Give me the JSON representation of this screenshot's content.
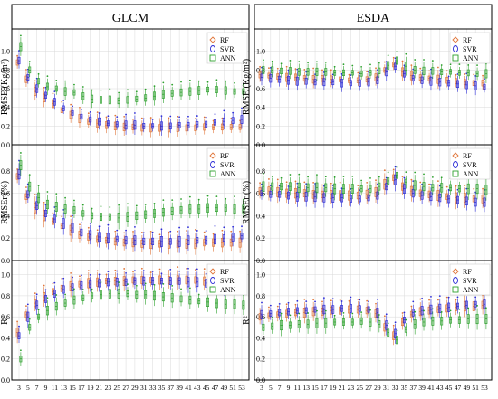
{
  "chart_data": [
    {
      "type": "boxplot",
      "title": "GLCM",
      "x": [
        3,
        5,
        7,
        9,
        11,
        13,
        15,
        17,
        19,
        21,
        23,
        25,
        27,
        29,
        31,
        33,
        35,
        37,
        39,
        41,
        43,
        45,
        47,
        49,
        51,
        53
      ],
      "x_tick_labels": [
        "3",
        "5",
        "7",
        "9",
        "11",
        "13",
        "15",
        "17",
        "19",
        "21",
        "23",
        "25",
        "27",
        "29",
        "31",
        "33",
        "35",
        "37",
        "39",
        "41",
        "43",
        "45",
        "47",
        "49",
        "51",
        "53"
      ],
      "legend": [
        "RF",
        "SVR",
        "ANN"
      ],
      "panels": [
        {
          "ylabel": "RMSE (Kg/m²)",
          "ylim": [
            0,
            1.2
          ],
          "yticks": [
            "0.0",
            "0.2",
            "0.4",
            "0.6",
            "0.8",
            "1.0"
          ],
          "series": [
            {
              "name": "RF",
              "median": [
                0.88,
                0.7,
                0.57,
                0.5,
                0.44,
                0.37,
                0.32,
                0.28,
                0.25,
                0.23,
                0.21,
                0.2,
                0.19,
                0.19,
                0.18,
                0.18,
                0.18,
                0.18,
                0.18,
                0.18,
                0.18,
                0.19,
                0.19,
                0.19,
                0.19,
                0.19
              ]
            },
            {
              "name": "SVR",
              "median": [
                0.9,
                0.72,
                0.6,
                0.53,
                0.46,
                0.39,
                0.34,
                0.3,
                0.27,
                0.25,
                0.23,
                0.22,
                0.21,
                0.21,
                0.2,
                0.2,
                0.2,
                0.2,
                0.21,
                0.21,
                0.22,
                0.22,
                0.24,
                0.25,
                0.26,
                0.27
              ]
            },
            {
              "name": "ANN",
              "median": [
                1.05,
                0.8,
                0.68,
                0.62,
                0.6,
                0.57,
                0.56,
                0.52,
                0.49,
                0.48,
                0.48,
                0.47,
                0.48,
                0.49,
                0.5,
                0.52,
                0.54,
                0.55,
                0.56,
                0.57,
                0.58,
                0.59,
                0.59,
                0.58,
                0.57,
                0.57
              ]
            }
          ]
        },
        {
          "ylabel": "RMSEr (%)",
          "ylim": [
            0,
            1.0
          ],
          "yticks": [
            "0.0",
            "0.2",
            "0.4",
            "0.6",
            "0.8"
          ],
          "series": [
            {
              "name": "RF",
              "median": [
                0.75,
                0.57,
                0.47,
                0.4,
                0.35,
                0.31,
                0.27,
                0.23,
                0.21,
                0.19,
                0.18,
                0.17,
                0.16,
                0.16,
                0.15,
                0.15,
                0.15,
                0.15,
                0.15,
                0.15,
                0.15,
                0.16,
                0.16,
                0.16,
                0.16,
                0.16
              ]
            },
            {
              "name": "SVR",
              "median": [
                0.77,
                0.59,
                0.49,
                0.42,
                0.37,
                0.33,
                0.29,
                0.25,
                0.23,
                0.21,
                0.2,
                0.19,
                0.18,
                0.18,
                0.17,
                0.17,
                0.17,
                0.17,
                0.17,
                0.18,
                0.18,
                0.18,
                0.19,
                0.2,
                0.21,
                0.22
              ]
            },
            {
              "name": "ANN",
              "median": [
                0.85,
                0.66,
                0.56,
                0.5,
                0.48,
                0.46,
                0.45,
                0.42,
                0.4,
                0.39,
                0.39,
                0.38,
                0.39,
                0.4,
                0.41,
                0.42,
                0.43,
                0.44,
                0.45,
                0.46,
                0.46,
                0.47,
                0.47,
                0.47,
                0.46,
                0.46
              ]
            }
          ]
        },
        {
          "ylabel": "R²",
          "ylim": [
            0,
            1.1
          ],
          "yticks": [
            "0.0",
            "0.2",
            "0.4",
            "0.6",
            "0.8",
            "1.0"
          ],
          "series": [
            {
              "name": "RF",
              "median": [
                0.45,
                0.62,
                0.73,
                0.79,
                0.84,
                0.87,
                0.89,
                0.91,
                0.92,
                0.93,
                0.94,
                0.94,
                0.94,
                0.95,
                0.95,
                0.95,
                0.95,
                0.95,
                0.95,
                0.95,
                0.95,
                0.94,
                0.94,
                0.93,
                0.93,
                0.93
              ]
            },
            {
              "name": "SVR",
              "median": [
                0.42,
                0.6,
                0.71,
                0.77,
                0.82,
                0.86,
                0.88,
                0.9,
                0.91,
                0.92,
                0.93,
                0.93,
                0.93,
                0.94,
                0.94,
                0.94,
                0.94,
                0.94,
                0.94,
                0.93,
                0.93,
                0.92,
                0.91,
                0.9,
                0.9,
                0.89
              ]
            },
            {
              "name": "ANN",
              "median": [
                0.2,
                0.5,
                0.6,
                0.66,
                0.7,
                0.73,
                0.76,
                0.78,
                0.8,
                0.81,
                0.82,
                0.82,
                0.82,
                0.81,
                0.81,
                0.8,
                0.79,
                0.78,
                0.77,
                0.76,
                0.75,
                0.74,
                0.73,
                0.72,
                0.72,
                0.71
              ]
            }
          ]
        }
      ]
    },
    {
      "type": "boxplot",
      "title": "ESDA",
      "x": [
        3,
        5,
        7,
        9,
        11,
        13,
        15,
        17,
        19,
        21,
        23,
        25,
        27,
        29,
        31,
        33,
        35,
        37,
        39,
        41,
        43,
        45,
        47,
        49,
        51,
        53
      ],
      "x_tick_labels": [
        "3",
        "5",
        "7",
        "9",
        "11",
        "13",
        "15",
        "17",
        "19",
        "21",
        "23",
        "25",
        "27",
        "29",
        "31",
        "33",
        "35",
        "37",
        "39",
        "41",
        "43",
        "45",
        "47",
        "49",
        "51",
        "53"
      ],
      "legend": [
        "RF",
        "SVR",
        "ANN"
      ],
      "panels": [
        {
          "ylabel": "RMSE (Kg/m²)",
          "ylim": [
            0,
            1.2
          ],
          "yticks": [
            "0.0",
            "0.2",
            "0.4",
            "0.6",
            "0.8",
            "1.0"
          ],
          "series": [
            {
              "name": "RF",
              "median": [
                0.75,
                0.74,
                0.73,
                0.72,
                0.72,
                0.71,
                0.7,
                0.71,
                0.7,
                0.7,
                0.69,
                0.69,
                0.7,
                0.72,
                0.8,
                0.86,
                0.78,
                0.74,
                0.72,
                0.71,
                0.7,
                0.69,
                0.68,
                0.67,
                0.66,
                0.66
              ]
            },
            {
              "name": "SVR",
              "median": [
                0.72,
                0.71,
                0.7,
                0.69,
                0.68,
                0.68,
                0.67,
                0.67,
                0.67,
                0.66,
                0.66,
                0.66,
                0.67,
                0.69,
                0.78,
                0.84,
                0.76,
                0.71,
                0.69,
                0.68,
                0.67,
                0.66,
                0.65,
                0.64,
                0.63,
                0.62
              ]
            },
            {
              "name": "ANN",
              "median": [
                0.8,
                0.8,
                0.79,
                0.79,
                0.78,
                0.78,
                0.78,
                0.78,
                0.77,
                0.77,
                0.77,
                0.76,
                0.77,
                0.79,
                0.85,
                0.9,
                0.84,
                0.8,
                0.79,
                0.79,
                0.78,
                0.78,
                0.77,
                0.77,
                0.76,
                0.76
              ]
            }
          ]
        },
        {
          "ylabel": "RMSEr (%)",
          "ylim": [
            0,
            1.0
          ],
          "yticks": [
            "0.0",
            "0.2",
            "0.4",
            "0.6",
            "0.8"
          ],
          "series": [
            {
              "name": "RF",
              "median": [
                0.62,
                0.62,
                0.61,
                0.6,
                0.6,
                0.6,
                0.59,
                0.59,
                0.59,
                0.58,
                0.58,
                0.58,
                0.59,
                0.61,
                0.68,
                0.74,
                0.66,
                0.62,
                0.6,
                0.59,
                0.58,
                0.57,
                0.56,
                0.56,
                0.55,
                0.55
              ]
            },
            {
              "name": "SVR",
              "median": [
                0.6,
                0.59,
                0.59,
                0.58,
                0.57,
                0.57,
                0.57,
                0.56,
                0.56,
                0.56,
                0.55,
                0.55,
                0.56,
                0.58,
                0.66,
                0.72,
                0.64,
                0.6,
                0.58,
                0.57,
                0.56,
                0.55,
                0.54,
                0.53,
                0.52,
                0.52
              ]
            },
            {
              "name": "ANN",
              "median": [
                0.66,
                0.66,
                0.66,
                0.66,
                0.65,
                0.65,
                0.65,
                0.65,
                0.64,
                0.64,
                0.64,
                0.64,
                0.64,
                0.66,
                0.71,
                0.76,
                0.7,
                0.67,
                0.66,
                0.65,
                0.65,
                0.65,
                0.64,
                0.64,
                0.64,
                0.63
              ]
            }
          ]
        },
        {
          "ylabel": "R²",
          "ylim": [
            0,
            1.1
          ],
          "yticks": [
            "0.0",
            "0.2",
            "0.4",
            "0.6",
            "0.8",
            "1.0"
          ],
          "series": [
            {
              "name": "RF",
              "median": [
                0.6,
                0.61,
                0.62,
                0.63,
                0.64,
                0.64,
                0.65,
                0.65,
                0.66,
                0.66,
                0.67,
                0.67,
                0.66,
                0.63,
                0.5,
                0.42,
                0.55,
                0.62,
                0.65,
                0.66,
                0.67,
                0.68,
                0.69,
                0.7,
                0.7,
                0.71
              ]
            },
            {
              "name": "SVR",
              "median": [
                0.62,
                0.63,
                0.64,
                0.65,
                0.66,
                0.66,
                0.67,
                0.67,
                0.67,
                0.68,
                0.68,
                0.68,
                0.67,
                0.64,
                0.52,
                0.44,
                0.57,
                0.64,
                0.66,
                0.67,
                0.68,
                0.69,
                0.7,
                0.71,
                0.72,
                0.72
              ]
            },
            {
              "name": "ANN",
              "median": [
                0.5,
                0.51,
                0.52,
                0.52,
                0.53,
                0.53,
                0.54,
                0.54,
                0.55,
                0.55,
                0.55,
                0.56,
                0.55,
                0.53,
                0.45,
                0.38,
                0.48,
                0.53,
                0.55,
                0.56,
                0.56,
                0.57,
                0.57,
                0.58,
                0.58,
                0.58
              ]
            }
          ]
        }
      ]
    }
  ]
}
